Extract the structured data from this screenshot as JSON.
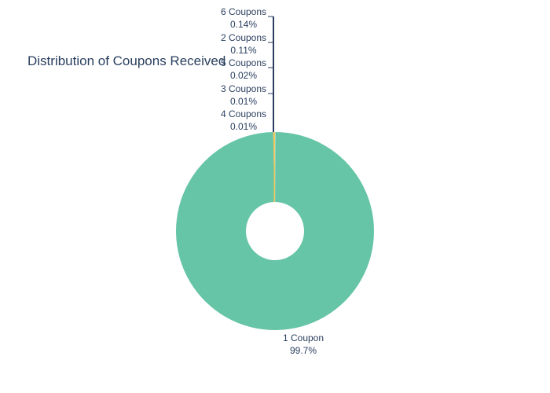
{
  "chart_data": {
    "type": "pie",
    "hole": true,
    "title": "Distribution of Coupons Received",
    "slices": [
      {
        "label": "1 Coupon",
        "value": 99.7,
        "display": "99.7%"
      },
      {
        "label": "6 Coupons",
        "value": 0.14,
        "display": "0.14%"
      },
      {
        "label": "2 Coupons",
        "value": 0.11,
        "display": "0.11%"
      },
      {
        "label": "5 Coupons",
        "value": 0.02,
        "display": "0.02%"
      },
      {
        "label": "3 Coupons",
        "value": 0.01,
        "display": "0.01%"
      },
      {
        "label": "4 Coupons",
        "value": 0.01,
        "display": "0.01%"
      }
    ],
    "colors": {
      "main": "#66c5a6",
      "thin": "#f2c14e",
      "text": "#2a3f5f",
      "leader": "#2a3f5f"
    }
  }
}
